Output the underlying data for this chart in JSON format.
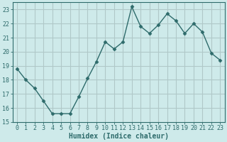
{
  "x": [
    0,
    1,
    2,
    3,
    4,
    5,
    6,
    7,
    8,
    9,
    10,
    11,
    12,
    13,
    14,
    15,
    16,
    17,
    18,
    19,
    20,
    21,
    22,
    23
  ],
  "y": [
    18.8,
    18.0,
    17.4,
    16.5,
    15.6,
    15.6,
    15.6,
    16.8,
    18.1,
    19.3,
    20.7,
    20.2,
    20.7,
    23.2,
    21.8,
    21.3,
    21.9,
    22.7,
    22.2,
    21.3,
    22.0,
    21.4,
    19.9,
    19.4
  ],
  "line_color": "#2e6b6b",
  "marker": "D",
  "marker_size": 2.5,
  "bg_color": "#ceeaea",
  "grid_color": "#b0c8c8",
  "xlabel": "Humidex (Indice chaleur)",
  "xlim": [
    -0.5,
    23.5
  ],
  "ylim": [
    15,
    23.5
  ],
  "yticks": [
    15,
    16,
    17,
    18,
    19,
    20,
    21,
    22,
    23
  ],
  "xticks": [
    0,
    1,
    2,
    3,
    4,
    5,
    6,
    7,
    8,
    9,
    10,
    11,
    12,
    13,
    14,
    15,
    16,
    17,
    18,
    19,
    20,
    21,
    22,
    23
  ],
  "tick_fontsize": 6,
  "xlabel_fontsize": 7
}
